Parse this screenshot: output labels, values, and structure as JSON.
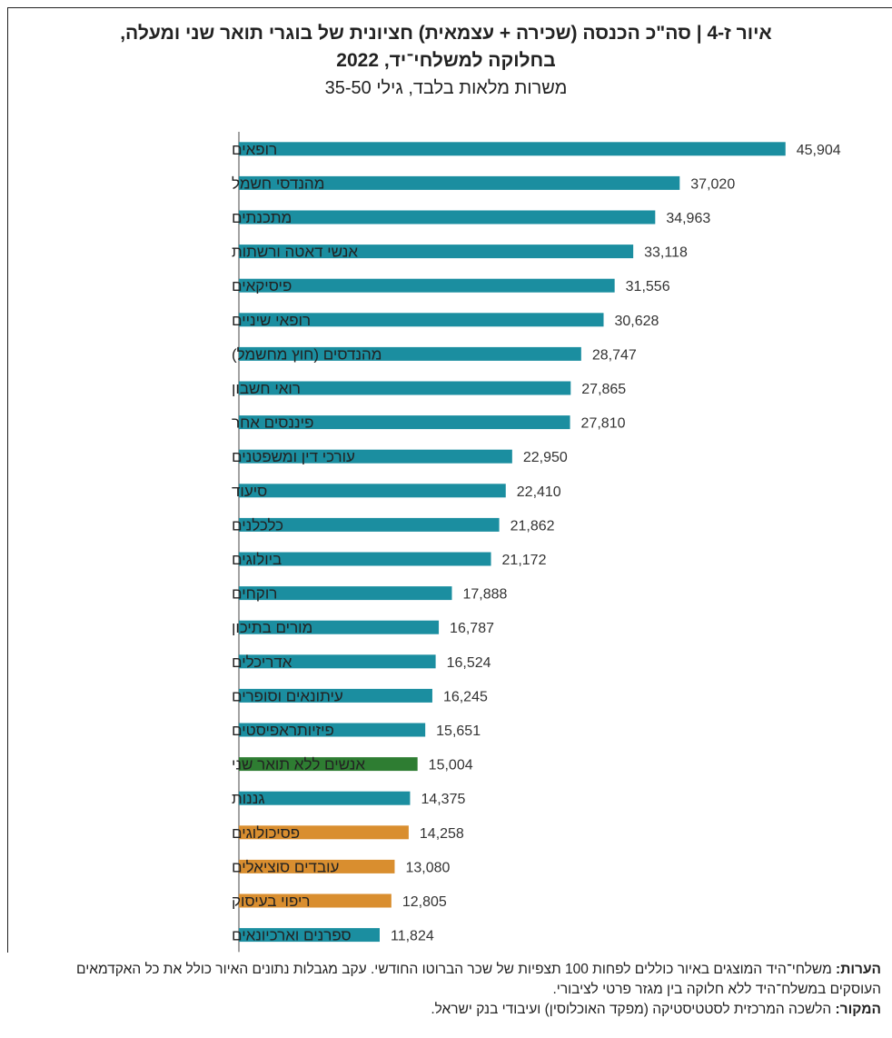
{
  "title_line1": "איור ז-4 | סה\"כ הכנסה (שכירה + עצמאית) חציונית של בוגרי תואר שני ומעלה,",
  "title_line2": "בחלוקה למשלחי־יד, 2022",
  "subtitle": "משרות מלאות בלבד, גילי 35-50",
  "notes": {
    "notes_label": "הערות:",
    "notes_text": "משלחי־היד המוצגים באיור כוללים לפחות 100 תצפיות של שכר הברוטו החודשי. עקב מגבלות נתונים האיור כולל את כל האקדמאים העוסקים במשלח־היד ללא חלוקה בין מגזר פרטי לציבורי.",
    "source_label": "המקור:",
    "source_text": "הלשכה המרכזית לסטטיסטיקה (מפקד האוכלוסין) ועיבודי בנק ישראל."
  },
  "colors": {
    "teal": "#1b8ea0",
    "green": "#2e7d32",
    "orange": "#d98e2f",
    "axis": "#444444"
  },
  "chart_data": {
    "type": "bar",
    "orientation": "horizontal",
    "categories": [
      "רופאים",
      "מהנדסי חשמל",
      "מתכנתים",
      "אנשי דאטה ורשתות",
      "פיסיקאים",
      "רופאי שיניים",
      "מהנדסים (חוץ מחשמל)",
      "רואי חשבון",
      "פיננסים אחר",
      "עורכי דין ומשפטנים",
      "סיעוד",
      "כלכלנים",
      "ביולוגים",
      "רוקחים",
      "מורים בתיכון",
      "אדריכלים",
      "עיתונאים וסופרים",
      "פיזיותראפיסטים",
      "אנשים ללא תואר שני",
      "גננות",
      "פסיכולוגים",
      "עובדים סוציאלים",
      "ריפוי בעיסוק",
      "ספרנים וארכיונאים"
    ],
    "values": [
      45904,
      37020,
      34963,
      33118,
      31556,
      30628,
      28747,
      27865,
      27810,
      22950,
      22410,
      21862,
      21172,
      17888,
      16787,
      16524,
      16245,
      15651,
      15004,
      14375,
      14258,
      13080,
      12805,
      11824
    ],
    "value_labels": [
      "45,904",
      "37,020",
      "34,963",
      "33,118",
      "31,556",
      "30,628",
      "28,747",
      "27,865",
      "27,810",
      "22,950",
      "22,410",
      "21,862",
      "21,172",
      "17,888",
      "16,787",
      "16,524",
      "16,245",
      "15,651",
      "15,004",
      "14,375",
      "14,258",
      "13,080",
      "12,805",
      "11,824"
    ],
    "bar_colors": [
      "teal",
      "teal",
      "teal",
      "teal",
      "teal",
      "teal",
      "teal",
      "teal",
      "teal",
      "teal",
      "teal",
      "teal",
      "teal",
      "teal",
      "teal",
      "teal",
      "teal",
      "teal",
      "green",
      "teal",
      "orange",
      "orange",
      "orange",
      "teal"
    ],
    "xlim": [
      0,
      46000
    ],
    "grid": false
  }
}
